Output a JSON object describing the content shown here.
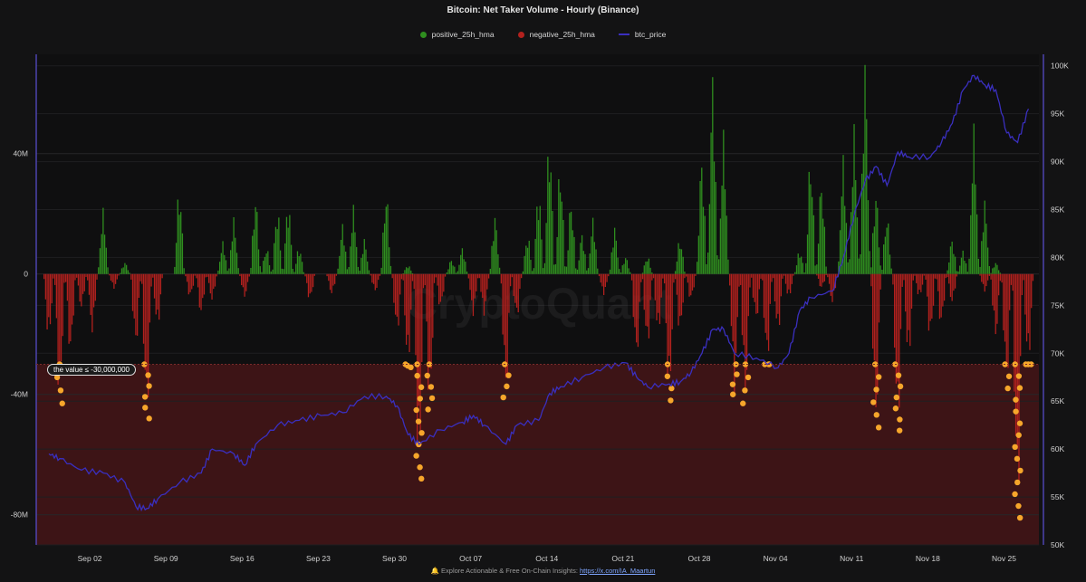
{
  "chart_data": {
    "type": "bar",
    "title": "Bitcoin: Net Taker Volume - Hourly (Binance)",
    "legend": [
      {
        "name": "positive_25h_hma",
        "color": "#2f8f1f",
        "kind": "dot"
      },
      {
        "name": "negative_25h_hma",
        "color": "#b3211e",
        "kind": "dot"
      },
      {
        "name": "btc_price",
        "color": "#3a2fbf",
        "kind": "line"
      }
    ],
    "legend_position": "top-center",
    "watermark": "CryptoQuant",
    "x_ticks": [
      "Sep 02",
      "Sep 09",
      "Sep 16",
      "Sep 23",
      "Sep 30",
      "Oct 07",
      "Oct 14",
      "Oct 21",
      "Oct 28",
      "Nov 04",
      "Nov 11",
      "Nov 18",
      "Nov 25"
    ],
    "x_range": [
      "2024-08-29",
      "2024-11-27"
    ],
    "y_left_ticks": [
      "40M",
      "0",
      "-40M",
      "-80M"
    ],
    "y_left_range": [
      -90000000,
      73000000
    ],
    "y_right_ticks": [
      "100K",
      "95K",
      "90K",
      "85K",
      "80K",
      "75K",
      "70K",
      "65K",
      "60K",
      "55K",
      "50K"
    ],
    "y_right_range": [
      50000,
      101200
    ],
    "threshold": {
      "value": -30000000,
      "label": "the value ≤ -30,000,000"
    },
    "series": [
      {
        "name": "positive_25h_hma",
        "unit": "BTC volume",
        "points": [
          [
            "2024-09-03",
            22000000
          ],
          [
            "2024-09-05",
            4000000
          ],
          [
            "2024-09-10",
            29000000
          ],
          [
            "2024-09-14",
            11000000
          ],
          [
            "2024-09-15",
            19000000
          ],
          [
            "2024-09-17",
            26000000
          ],
          [
            "2024-09-18",
            9000000
          ],
          [
            "2024-09-19",
            22000000
          ],
          [
            "2024-09-20",
            24000000
          ],
          [
            "2024-09-21",
            9000000
          ],
          [
            "2024-09-25",
            17000000
          ],
          [
            "2024-09-26",
            23000000
          ],
          [
            "2024-09-27",
            12000000
          ],
          [
            "2024-09-29",
            28000000
          ],
          [
            "2024-10-01",
            3000000
          ],
          [
            "2024-10-05",
            5000000
          ],
          [
            "2024-10-06",
            9000000
          ],
          [
            "2024-10-09",
            20000000
          ],
          [
            "2024-10-12",
            13000000
          ],
          [
            "2024-10-13",
            28000000
          ],
          [
            "2024-10-14",
            46000000
          ],
          [
            "2024-10-15",
            37000000
          ],
          [
            "2024-10-16",
            25000000
          ],
          [
            "2024-10-17",
            14000000
          ],
          [
            "2024-10-18",
            19000000
          ],
          [
            "2024-10-20",
            16000000
          ],
          [
            "2024-10-21",
            6000000
          ],
          [
            "2024-10-23",
            6000000
          ],
          [
            "2024-10-26",
            12000000
          ],
          [
            "2024-10-28",
            40000000
          ],
          [
            "2024-10-29",
            68000000
          ],
          [
            "2024-10-30",
            48000000
          ],
          [
            "2024-11-06",
            8000000
          ],
          [
            "2024-11-07",
            40000000
          ],
          [
            "2024-11-08",
            32000000
          ],
          [
            "2024-11-10",
            40000000
          ],
          [
            "2024-11-11",
            50000000
          ],
          [
            "2024-11-12",
            73000000
          ],
          [
            "2024-11-13",
            28000000
          ],
          [
            "2024-11-14",
            20000000
          ],
          [
            "2024-11-20",
            12000000
          ],
          [
            "2024-11-21",
            8000000
          ],
          [
            "2024-11-22",
            50000000
          ],
          [
            "2024-11-23",
            25000000
          ],
          [
            "2024-11-24",
            4000000
          ]
        ]
      },
      {
        "name": "negative_25h_hma",
        "unit": "BTC volume",
        "points": [
          [
            "2024-08-29",
            -22000000
          ],
          [
            "2024-08-30",
            -43000000
          ],
          [
            "2024-08-31",
            -28000000
          ],
          [
            "2024-09-01",
            -12000000
          ],
          [
            "2024-09-02",
            -20000000
          ],
          [
            "2024-09-04",
            -5000000
          ],
          [
            "2024-09-06",
            -25000000
          ],
          [
            "2024-09-07",
            -48000000
          ],
          [
            "2024-09-08",
            -18000000
          ],
          [
            "2024-09-11",
            -8000000
          ],
          [
            "2024-09-12",
            -14000000
          ],
          [
            "2024-09-13",
            -9000000
          ],
          [
            "2024-09-16",
            -8000000
          ],
          [
            "2024-09-22",
            -9000000
          ],
          [
            "2024-09-24",
            -7000000
          ],
          [
            "2024-09-28",
            -6000000
          ],
          [
            "2024-09-30",
            -20000000
          ],
          [
            "2024-10-01",
            -31000000
          ],
          [
            "2024-10-02",
            -68000000
          ],
          [
            "2024-10-03",
            -45000000
          ],
          [
            "2024-10-04",
            -12000000
          ],
          [
            "2024-10-07",
            -14000000
          ],
          [
            "2024-10-08",
            -14000000
          ],
          [
            "2024-10-10",
            -41000000
          ],
          [
            "2024-10-11",
            -15000000
          ],
          [
            "2024-10-19",
            -7000000
          ],
          [
            "2024-10-22",
            -29000000
          ],
          [
            "2024-10-23",
            -25000000
          ],
          [
            "2024-10-24",
            -20000000
          ],
          [
            "2024-10-25",
            -42000000
          ],
          [
            "2024-10-26",
            -20000000
          ],
          [
            "2024-10-27",
            -9000000
          ],
          [
            "2024-10-31",
            -40000000
          ],
          [
            "2024-11-01",
            -43000000
          ],
          [
            "2024-11-02",
            -16000000
          ],
          [
            "2024-11-03",
            -30000000
          ],
          [
            "2024-11-04",
            -20000000
          ],
          [
            "2024-11-05",
            -8000000
          ],
          [
            "2024-11-08",
            -5000000
          ],
          [
            "2024-11-09",
            -10000000
          ],
          [
            "2024-11-13",
            -51000000
          ],
          [
            "2024-11-15",
            -52000000
          ],
          [
            "2024-11-16",
            -29000000
          ],
          [
            "2024-11-17",
            -8000000
          ],
          [
            "2024-11-18",
            -22000000
          ],
          [
            "2024-11-19",
            -18000000
          ],
          [
            "2024-11-20",
            -10000000
          ],
          [
            "2024-11-23",
            -6000000
          ],
          [
            "2024-11-24",
            -22000000
          ],
          [
            "2024-11-25",
            -38000000
          ],
          [
            "2024-11-26",
            -81000000
          ],
          [
            "2024-11-27",
            -30000000
          ]
        ]
      },
      {
        "name": "btc_price",
        "unit": "USD",
        "points": [
          [
            "2024-08-29",
            59500
          ],
          [
            "2024-08-30",
            59000
          ],
          [
            "2024-09-01",
            57800
          ],
          [
            "2024-09-03",
            57500
          ],
          [
            "2024-09-05",
            56500
          ],
          [
            "2024-09-06",
            54000
          ],
          [
            "2024-09-07",
            53800
          ],
          [
            "2024-09-08",
            54800
          ],
          [
            "2024-09-10",
            56500
          ],
          [
            "2024-09-12",
            57500
          ],
          [
            "2024-09-13",
            60000
          ],
          [
            "2024-09-15",
            59500
          ],
          [
            "2024-09-16",
            58300
          ],
          [
            "2024-09-17",
            60500
          ],
          [
            "2024-09-19",
            62500
          ],
          [
            "2024-09-21",
            63000
          ],
          [
            "2024-09-23",
            63500
          ],
          [
            "2024-09-25",
            63800
          ],
          [
            "2024-09-27",
            65500
          ],
          [
            "2024-09-29",
            65500
          ],
          [
            "2024-09-30",
            64500
          ],
          [
            "2024-10-01",
            61500
          ],
          [
            "2024-10-02",
            60500
          ],
          [
            "2024-10-04",
            62000
          ],
          [
            "2024-10-06",
            62800
          ],
          [
            "2024-10-07",
            63500
          ],
          [
            "2024-10-08",
            62500
          ],
          [
            "2024-10-10",
            60500
          ],
          [
            "2024-10-11",
            62500
          ],
          [
            "2024-10-13",
            63000
          ],
          [
            "2024-10-14",
            65800
          ],
          [
            "2024-10-15",
            66500
          ],
          [
            "2024-10-17",
            67500
          ],
          [
            "2024-10-19",
            68500
          ],
          [
            "2024-10-21",
            69000
          ],
          [
            "2024-10-22",
            67500
          ],
          [
            "2024-10-23",
            66500
          ],
          [
            "2024-10-25",
            66800
          ],
          [
            "2024-10-26",
            67000
          ],
          [
            "2024-10-27",
            68000
          ],
          [
            "2024-10-28",
            70000
          ],
          [
            "2024-10-29",
            72500
          ],
          [
            "2024-10-30",
            72500
          ],
          [
            "2024-10-31",
            70000
          ],
          [
            "2024-11-02",
            69500
          ],
          [
            "2024-11-04",
            68500
          ],
          [
            "2024-11-05",
            70000
          ],
          [
            "2024-11-06",
            74500
          ],
          [
            "2024-11-07",
            75800
          ],
          [
            "2024-11-09",
            76500
          ],
          [
            "2024-11-10",
            80000
          ],
          [
            "2024-11-11",
            84500
          ],
          [
            "2024-11-12",
            88000
          ],
          [
            "2024-11-13",
            89500
          ],
          [
            "2024-11-14",
            87500
          ],
          [
            "2024-11-15",
            91000
          ],
          [
            "2024-11-16",
            90500
          ],
          [
            "2024-11-18",
            90500
          ],
          [
            "2024-11-19",
            92000
          ],
          [
            "2024-11-20",
            94000
          ],
          [
            "2024-11-21",
            97500
          ],
          [
            "2024-11-22",
            99000
          ],
          [
            "2024-11-23",
            98000
          ],
          [
            "2024-11-24",
            97500
          ],
          [
            "2024-11-25",
            93000
          ],
          [
            "2024-11-26",
            92000
          ],
          [
            "2024-11-27",
            95500
          ]
        ]
      }
    ],
    "grid": true
  },
  "footer": {
    "text": "🔔 Explore Actionable & Free On-Chain Insights: ",
    "link": "https://x.com/IA_Maartun"
  }
}
